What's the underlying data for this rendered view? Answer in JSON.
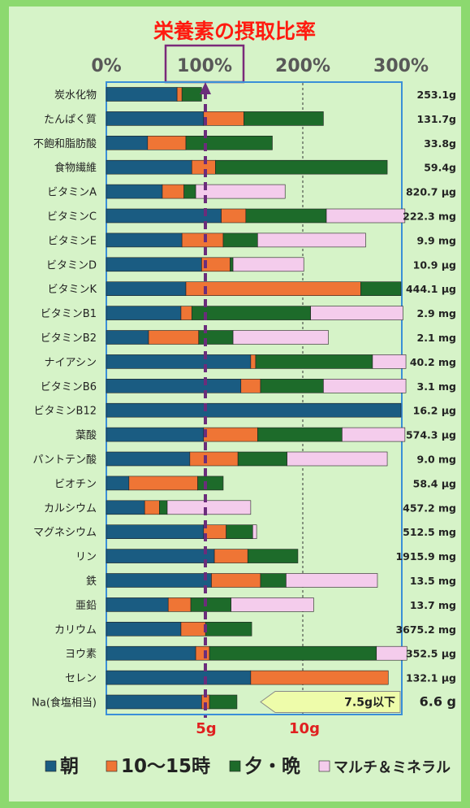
{
  "chart_data": {
    "type": "bar",
    "stacked": true,
    "orientation": "horizontal",
    "title": "栄養素の摂取比率",
    "x_ticks": [
      "0%",
      "100%",
      "200%",
      "300%"
    ],
    "xlim": [
      0,
      300
    ],
    "highlighted_tick": "100%",
    "reference_line": 100,
    "grid_line": 200,
    "categories": [
      "炭水化物",
      "たんぱく質",
      "不飽和脂肪酸",
      "食物繊維",
      "ビタミンA",
      "ビタミンC",
      "ビタミンE",
      "ビタミンD",
      "ビタミンK",
      "ビタミンB1",
      "ビタミンB2",
      "ナイアシン",
      "ビタミンB6",
      "ビタミンB12",
      "葉酸",
      "パントテン酸",
      "ビオチン",
      "カルシウム",
      "マグネシウム",
      "リン",
      "鉄",
      "亜鉛",
      "カリウム",
      "ヨウ素",
      "セレン",
      "Na(食塩相当)"
    ],
    "totals": [
      "253.1g",
      "131.7g",
      "33.8g",
      "59.4g",
      "820.7 μg",
      "222.3 mg",
      "9.9 mg",
      "10.9 μg",
      "444.1 μg",
      "2.9 mg",
      "2.1 mg",
      "40.2 mg",
      "3.1 mg",
      "16.2 μg",
      "574.3 μg",
      "9.0 mg",
      "58.4 μg",
      "457.2 mg",
      "512.5 mg",
      "1915.9 mg",
      "13.5 mg",
      "13.7 mg",
      "3675.2 mg",
      "352.5 μg",
      "132.1 μg",
      "6.6 g"
    ],
    "series": [
      {
        "name": "朝",
        "color": "#1a5c82",
        "values": [
          72,
          99,
          42,
          87,
          57,
          117,
          77,
          97,
          81,
          76,
          43,
          147,
          137,
          300,
          99,
          85,
          23,
          39,
          99,
          110,
          107,
          63,
          76,
          91,
          147,
          97
        ]
      },
      {
        "name": "10～15時",
        "color": "#ef7535",
        "values": [
          5,
          41,
          39,
          24,
          22,
          25,
          42,
          29,
          178,
          11,
          51,
          5,
          20,
          0,
          55,
          49,
          70,
          15,
          23,
          34,
          50,
          23,
          25,
          14,
          140,
          8
        ]
      },
      {
        "name": "夕・晩",
        "color": "#1d6b2a",
        "values": [
          20,
          81,
          88,
          175,
          12,
          82,
          35,
          3,
          41,
          121,
          35,
          119,
          64,
          0,
          86,
          50,
          26,
          8,
          27,
          51,
          26,
          41,
          47,
          170,
          0,
          28
        ]
      },
      {
        "name": "マルチ＆ミネラル",
        "color": "#f4ccec",
        "values": [
          0,
          0,
          0,
          0,
          91,
          80,
          110,
          72,
          0,
          94,
          97,
          34,
          84,
          0,
          64,
          102,
          0,
          85,
          4,
          0,
          93,
          84,
          0,
          31,
          0,
          0
        ]
      }
    ],
    "bottom_ticks": [
      "5g",
      "10g"
    ],
    "sodium_target_label": "7.5g以下"
  }
}
